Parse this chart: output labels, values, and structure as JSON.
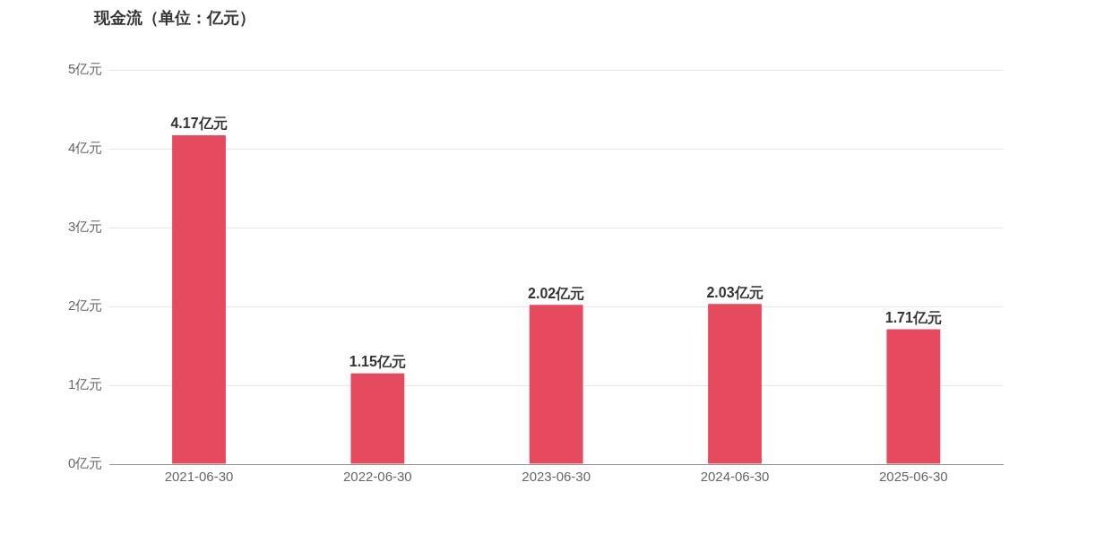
{
  "chart_data": {
    "type": "bar",
    "title": "现金流（单位：亿元）",
    "categories": [
      "2021-06-30",
      "2022-06-30",
      "2023-06-30",
      "2024-06-30",
      "2025-06-30"
    ],
    "values": [
      4.17,
      1.15,
      2.02,
      2.03,
      1.71
    ],
    "value_labels": [
      "4.17亿元",
      "1.15亿元",
      "2.02亿元",
      "2.03亿元",
      "1.71亿元"
    ],
    "color": "#e64a5e",
    "ylim": [
      0,
      5
    ],
    "yticks": [
      {
        "value": 0,
        "label": "0亿元"
      },
      {
        "value": 1,
        "label": "1亿元"
      },
      {
        "value": 2,
        "label": "2亿元"
      },
      {
        "value": 3,
        "label": "3亿元"
      },
      {
        "value": 4,
        "label": "4亿元"
      },
      {
        "value": 5,
        "label": "5亿元"
      }
    ],
    "grid": "y",
    "legend": false
  }
}
